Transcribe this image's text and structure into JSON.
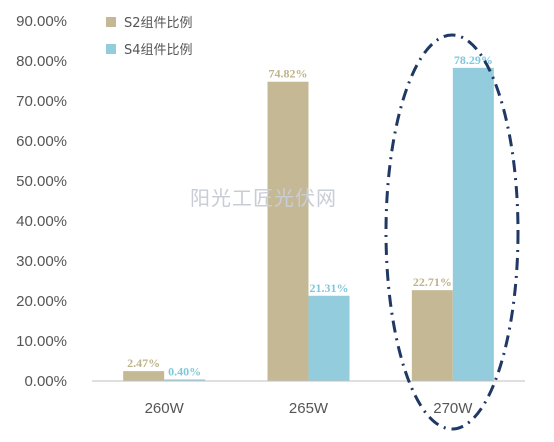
{
  "watermark": "阳光工匠光伏网",
  "colors": {
    "s2": "#c5b995",
    "s4": "#93cddd",
    "s2_label": "#c0b28a",
    "s4_label": "#7fc7dc",
    "axis": "#bfbfbf",
    "ellipse": "#1f3864"
  },
  "chart_data": {
    "type": "bar",
    "categories": [
      "260W",
      "265W",
      "270W"
    ],
    "series": [
      {
        "name": "S2组件比例",
        "values": [
          2.47,
          74.82,
          22.71
        ],
        "labels": [
          "2.47%",
          "74.82%",
          "22.71%"
        ]
      },
      {
        "name": "S4组件比例",
        "values": [
          0.4,
          21.31,
          78.29
        ],
        "labels": [
          "0.40%",
          "21.31%",
          "78.29%"
        ]
      }
    ],
    "y_ticks": [
      "0.00%",
      "10.00%",
      "20.00%",
      "30.00%",
      "40.00%",
      "50.00%",
      "60.00%",
      "70.00%",
      "80.00%",
      "90.00%"
    ],
    "ylim": [
      0,
      90
    ],
    "legend_position": "top-left",
    "grid": false,
    "title": "",
    "xlabel": "",
    "ylabel": "",
    "annotation": "dash-dot ellipse highlighting 270W"
  }
}
